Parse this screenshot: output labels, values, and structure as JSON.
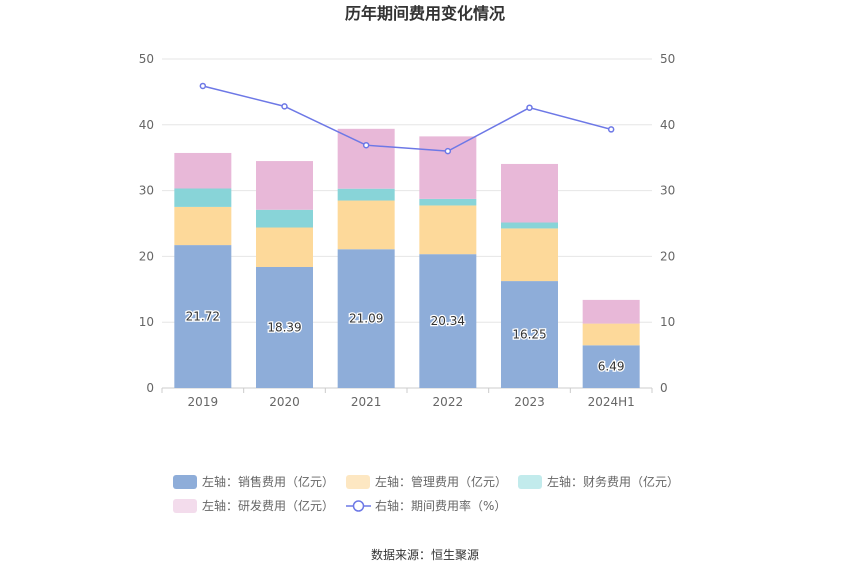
{
  "chart_data": {
    "type": "bar",
    "title": "历年期间费用变化情况",
    "categories": [
      "2019",
      "2020",
      "2021",
      "2022",
      "2023",
      "2024H1"
    ],
    "y_left": {
      "ylim": [
        0,
        50
      ],
      "ticks": [
        0,
        10,
        20,
        30,
        40,
        50
      ]
    },
    "y_right": {
      "ylim": [
        0,
        50
      ],
      "ticks": [
        0,
        10,
        20,
        30,
        40,
        50
      ]
    },
    "series": [
      {
        "name": "左轴：销售费用（亿元）",
        "type": "stacked-bar",
        "axis": "left",
        "color": "#8eadd9",
        "values": [
          21.72,
          18.39,
          21.09,
          20.34,
          16.25,
          6.49
        ],
        "show_labels": true
      },
      {
        "name": "左轴：管理费用（亿元）",
        "type": "stacked-bar",
        "axis": "left",
        "color": "#fdd99a",
        "values": [
          5.8,
          6.0,
          7.4,
          7.4,
          8.0,
          3.3
        ],
        "show_labels": false
      },
      {
        "name": "左轴：财务费用（亿元）",
        "type": "stacked-bar",
        "axis": "left",
        "color": "#88d4d8",
        "values": [
          2.8,
          2.7,
          1.8,
          1.0,
          0.9,
          0.0
        ],
        "show_labels": false
      },
      {
        "name": "左轴：研发费用（亿元）",
        "type": "stacked-bar",
        "axis": "left",
        "color": "#e8b8d8",
        "values": [
          5.4,
          7.4,
          9.1,
          9.5,
          8.9,
          3.6
        ],
        "show_labels": false
      },
      {
        "name": "右轴：期间费用率（%）",
        "type": "line",
        "axis": "right",
        "color": "#6d78e6",
        "values": [
          45.9,
          42.8,
          36.9,
          36.0,
          42.6,
          39.3
        ]
      }
    ],
    "legend_position": "bottom",
    "legend_colors": [
      "#8eadd9",
      "#fde7c2",
      "#c2ebec",
      "#f3dcec",
      "#6d78e6"
    ],
    "grid": true
  },
  "footer": {
    "source": "数据来源：恒生聚源"
  }
}
